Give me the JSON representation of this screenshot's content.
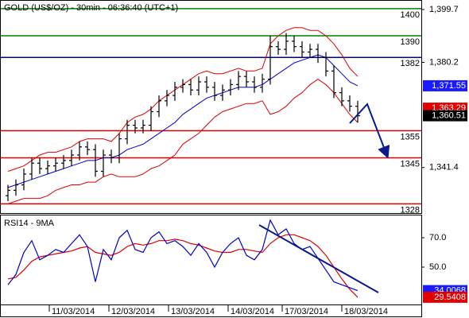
{
  "chart_data": [
    {
      "type": "ohlc",
      "title": "GOLD (US$/OZ) - 30min - 06:36:40 (UTC+1)",
      "color": "#000000",
      "open": [
        1331,
        1333,
        1335,
        1339,
        1343,
        1341,
        1342,
        1343,
        1344,
        1346,
        1349,
        1348,
        1340,
        1346,
        1345,
        1352,
        1357,
        1356,
        1357,
        1362,
        1366,
        1368,
        1371,
        1372,
        1370,
        1373,
        1371,
        1368,
        1370,
        1372,
        1375,
        1373,
        1371,
        1374,
        1386,
        1385,
        1388,
        1386,
        1384,
        1385,
        1382,
        1377,
        1369,
        1366,
        1364
      ],
      "high": [
        1335,
        1337,
        1341,
        1345,
        1345,
        1344,
        1345,
        1346,
        1348,
        1351,
        1351,
        1350,
        1348,
        1348,
        1354,
        1359,
        1359,
        1359,
        1364,
        1368,
        1370,
        1373,
        1374,
        1374,
        1375,
        1375,
        1373,
        1372,
        1374,
        1377,
        1377,
        1375,
        1376,
        1390,
        1388,
        1391,
        1390,
        1388,
        1387,
        1387,
        1384,
        1379,
        1371,
        1368,
        1366
      ],
      "low": [
        1329,
        1331,
        1333,
        1337,
        1339,
        1339,
        1340,
        1341,
        1342,
        1344,
        1346,
        1338,
        1338,
        1343,
        1343,
        1350,
        1354,
        1354,
        1355,
        1360,
        1364,
        1366,
        1369,
        1368,
        1368,
        1369,
        1366,
        1366,
        1368,
        1370,
        1371,
        1369,
        1369,
        1372,
        1383,
        1383,
        1384,
        1382,
        1382,
        1380,
        1375,
        1367,
        1364,
        1362,
        1358
      ],
      "close": [
        1333,
        1335,
        1339,
        1343,
        1341,
        1342,
        1343,
        1344,
        1346,
        1349,
        1348,
        1340,
        1346,
        1345,
        1352,
        1357,
        1356,
        1357,
        1362,
        1366,
        1368,
        1371,
        1372,
        1370,
        1373,
        1371,
        1368,
        1370,
        1372,
        1375,
        1373,
        1371,
        1374,
        1386,
        1385,
        1388,
        1386,
        1384,
        1385,
        1382,
        1377,
        1369,
        1366,
        1364,
        1360.51
      ],
      "bands": [
        {
          "color": "#e00000",
          "values": [
            1340,
            1341,
            1342,
            1344,
            1346,
            1347,
            1347,
            1348,
            1349,
            1351,
            1352,
            1352,
            1352,
            1351,
            1354,
            1358,
            1360,
            1361,
            1363,
            1366,
            1368,
            1370,
            1372,
            1374,
            1376,
            1377,
            1376,
            1376,
            1377,
            1378,
            1377,
            1377,
            1378,
            1387,
            1390,
            1392,
            1393,
            1393,
            1392,
            1392,
            1390,
            1387,
            1383,
            1378,
            1375
          ]
        },
        {
          "color": "#0000cc",
          "values": [
            1334,
            1335,
            1336,
            1337,
            1338,
            1339,
            1340,
            1341,
            1342,
            1343,
            1344,
            1344,
            1345,
            1345,
            1346,
            1348,
            1349,
            1350,
            1352,
            1354,
            1356,
            1358,
            1361,
            1363,
            1365,
            1367,
            1368,
            1369,
            1370,
            1371,
            1371,
            1371,
            1372,
            1374,
            1376,
            1378,
            1380,
            1381,
            1382,
            1383,
            1382,
            1379,
            1376,
            1373,
            1371.55
          ]
        },
        {
          "color": "#e00000",
          "values": [
            1328,
            1329,
            1330,
            1330,
            1330,
            1331,
            1333,
            1334,
            1335,
            1335,
            1336,
            1336,
            1338,
            1339,
            1338,
            1338,
            1338,
            1339,
            1341,
            1342,
            1344,
            1346,
            1350,
            1352,
            1354,
            1357,
            1360,
            1362,
            1363,
            1364,
            1365,
            1365,
            1366,
            1361,
            1362,
            1364,
            1367,
            1369,
            1372,
            1374,
            1372,
            1369,
            1365,
            1361,
            1358
          ]
        }
      ],
      "levels": [
        {
          "value": 1400,
          "label": "1400",
          "color": "#008000"
        },
        {
          "value": 1390,
          "label": "1390",
          "color": "#008000"
        },
        {
          "value": 1382,
          "label": "1382",
          "color": "#000099"
        },
        {
          "value": 1355,
          "label": "1355",
          "color": "#e00000"
        },
        {
          "value": 1345,
          "label": "1345",
          "color": "#e00000"
        },
        {
          "value": 1328,
          "label": "1328",
          "color": "#e00000"
        }
      ],
      "tags": [
        {
          "value": 1371.55,
          "label": "1,371.55",
          "color": "#1a1aff"
        },
        {
          "value": 1363.29,
          "label": "1,363.29",
          "color": "#e00000"
        },
        {
          "value": 1360.51,
          "label": "1,360.51",
          "color": "#000000"
        }
      ],
      "xlim": [
        -1,
        52
      ],
      "ylim": [
        1324.6,
        1403.2
      ],
      "yticks": [
        {
          "value": 1399.7,
          "label": "1,399.7"
        },
        {
          "value": 1380.2,
          "label": "1,380.2"
        },
        {
          "value": 1341.4,
          "label": "1,341.4"
        }
      ]
    },
    {
      "type": "line",
      "title": "RSI14 - 9MA",
      "series": [
        {
          "color": "#0000cc",
          "values": [
            38,
            45,
            60,
            68,
            55,
            58,
            62,
            60,
            66,
            72,
            64,
            40,
            62,
            55,
            70,
            75,
            62,
            60,
            70,
            74,
            66,
            68,
            64,
            58,
            66,
            60,
            50,
            60,
            66,
            70,
            58,
            55,
            62,
            82,
            72,
            76,
            66,
            62,
            64,
            56,
            48,
            40,
            38,
            36,
            34.0068
          ]
        },
        {
          "color": "#e00000",
          "values": [
            42,
            43,
            48,
            54,
            57,
            58,
            59,
            60,
            61,
            63,
            64,
            60,
            59,
            58,
            60,
            64,
            66,
            65,
            66,
            68,
            68,
            69,
            68,
            66,
            65,
            63,
            61,
            60,
            60,
            62,
            62,
            61,
            60,
            66,
            70,
            72,
            72,
            70,
            68,
            64,
            58,
            50,
            42,
            35,
            29.5408
          ]
        }
      ],
      "tags": [
        {
          "value": 34.0068,
          "label": "34.0068",
          "color": "#1a1aff"
        },
        {
          "value": 29.5408,
          "label": "29.5408",
          "color": "#e00000"
        }
      ],
      "xlim": [
        -1,
        52
      ],
      "ylim": [
        24.6,
        85.7
      ],
      "yticks": [
        {
          "value": 70,
          "label": "70.0"
        },
        {
          "value": 50,
          "label": "50.0"
        }
      ],
      "xticks": [
        {
          "value": 5.2,
          "label": "11/03/2014"
        },
        {
          "value": 12.7,
          "label": "12/03/2014"
        },
        {
          "value": 20.2,
          "label": "13/03/2014"
        },
        {
          "value": 27.7,
          "label": "14/03/2014"
        },
        {
          "value": 34.5,
          "label": "17/03/2014"
        },
        {
          "value": 42,
          "label": "18/03/2014"
        }
      ]
    }
  ]
}
